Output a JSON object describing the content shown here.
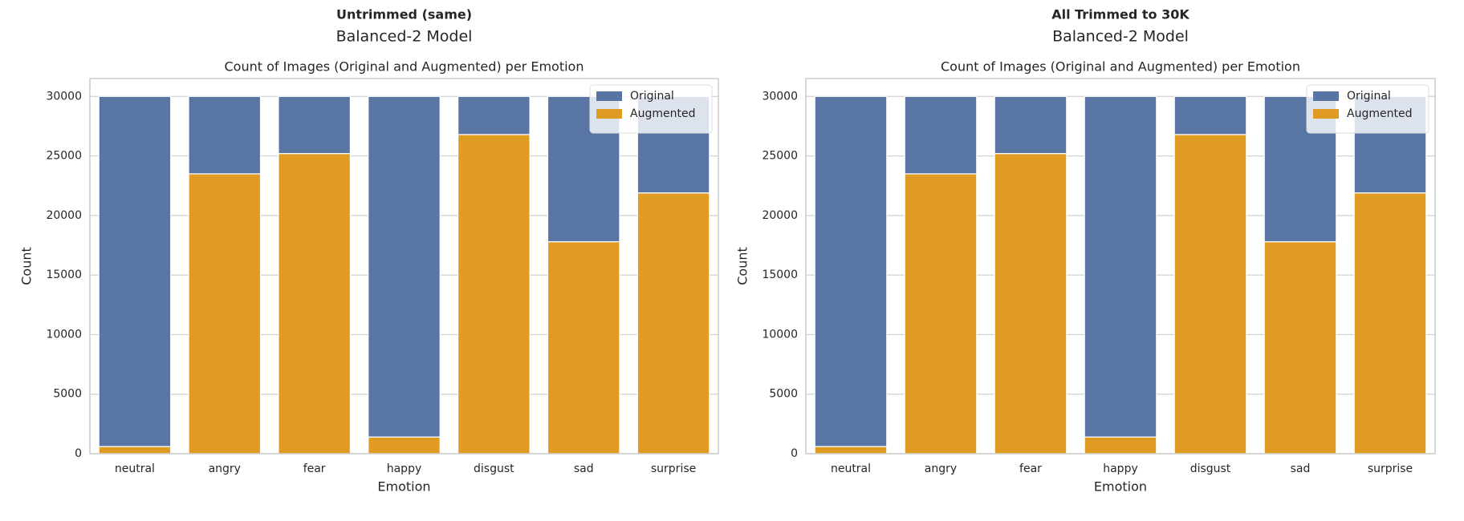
{
  "chart_data": [
    {
      "type": "bar",
      "stacked": true,
      "title": "Untrimmed (same)",
      "subtitle": "Balanced-2 Model",
      "axes_title": "Count of Images (Original and Augmented) per Emotion",
      "x_label": "Emotion",
      "y_label": "Count",
      "categories": [
        "neutral",
        "angry",
        "fear",
        "happy",
        "disgust",
        "sad",
        "surprise"
      ],
      "series": [
        {
          "name": "Original",
          "color": "#5875a4",
          "values": [
            29400,
            6500,
            4800,
            28600,
            3200,
            12200,
            8100
          ]
        },
        {
          "name": "Augmented",
          "color": "#e09c22",
          "values": [
            600,
            23500,
            25200,
            1400,
            26800,
            17800,
            21900
          ]
        }
      ],
      "ylim": [
        0,
        31500
      ],
      "yticks": [
        0,
        5000,
        10000,
        15000,
        20000,
        25000,
        30000
      ],
      "grid": true,
      "legend": "upper right"
    },
    {
      "type": "bar",
      "stacked": true,
      "title": "All Trimmed to 30K",
      "subtitle": "Balanced-2 Model",
      "axes_title": "Count of Images (Original and Augmented) per Emotion",
      "x_label": "Emotion",
      "y_label": "Count",
      "categories": [
        "neutral",
        "angry",
        "fear",
        "happy",
        "disgust",
        "sad",
        "surprise"
      ],
      "series": [
        {
          "name": "Original",
          "color": "#5875a4",
          "values": [
            29400,
            6500,
            4800,
            28600,
            3200,
            12200,
            8100
          ]
        },
        {
          "name": "Augmented",
          "color": "#e09c22",
          "values": [
            600,
            23500,
            25200,
            1400,
            26800,
            17800,
            21900
          ]
        }
      ],
      "ylim": [
        0,
        31500
      ],
      "yticks": [
        0,
        5000,
        10000,
        15000,
        20000,
        25000,
        30000
      ],
      "grid": true,
      "legend": "upper right"
    }
  ]
}
